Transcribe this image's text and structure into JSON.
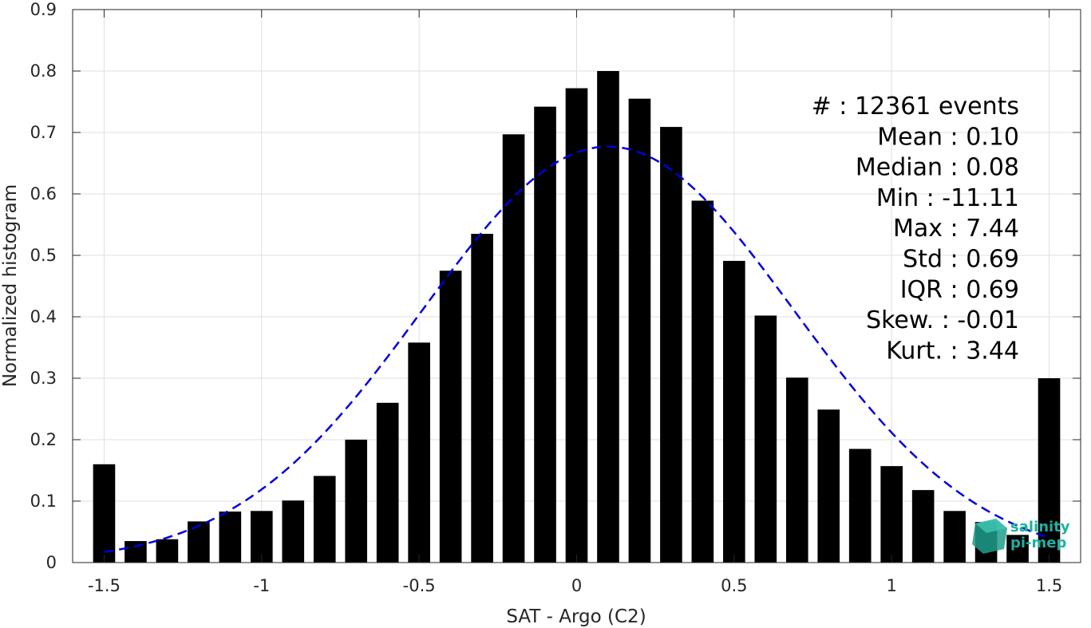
{
  "chart_data": {
    "type": "bar",
    "xlabel": "SAT - Argo (C2)",
    "ylabel": "Normalized histogram",
    "xlim": [
      -1.6,
      1.6
    ],
    "ylim": [
      0,
      0.9
    ],
    "xticks": [
      -1.5,
      -1,
      -0.5,
      0,
      0.5,
      1,
      1.5
    ],
    "xtick_labels": [
      "-1.5",
      "-1",
      "-0.5",
      "0",
      "0.5",
      "1",
      "1.5"
    ],
    "yticks": [
      0,
      0.1,
      0.2,
      0.3,
      0.4,
      0.5,
      0.6,
      0.7,
      0.8,
      0.9
    ],
    "ytick_labels": [
      "0",
      "0.1",
      "0.2",
      "0.3",
      "0.4",
      "0.5",
      "0.6",
      "0.7",
      "0.8",
      "0.9"
    ],
    "grid": true,
    "bar_color": "#000000",
    "x": [
      -1.5,
      -1.4,
      -1.3,
      -1.2,
      -1.1,
      -1.0,
      -0.9,
      -0.8,
      -0.7,
      -0.6,
      -0.5,
      -0.4,
      -0.3,
      -0.2,
      -0.1,
      0.0,
      0.1,
      0.2,
      0.3,
      0.4,
      0.5,
      0.6,
      0.7,
      0.8,
      0.9,
      1.0,
      1.1,
      1.2,
      1.3,
      1.4,
      1.5
    ],
    "values": [
      0.16,
      0.035,
      0.038,
      0.067,
      0.083,
      0.084,
      0.101,
      0.141,
      0.2,
      0.26,
      0.358,
      0.475,
      0.535,
      0.697,
      0.742,
      0.772,
      0.8,
      0.755,
      0.709,
      0.589,
      0.491,
      0.402,
      0.301,
      0.249,
      0.185,
      0.157,
      0.118,
      0.084,
      0.066,
      0.045,
      0.3
    ],
    "fit_curve": {
      "type": "gaussian",
      "mean": 0.1,
      "std": 0.59,
      "peak": 0.677,
      "color": "#0000dd",
      "style": "dashed"
    },
    "annotations": [
      "#  : 12361 events",
      "Mean : 0.10",
      "Median : 0.08",
      "Min : -11.11",
      "Max : 7.44",
      "Std : 0.69",
      "IQR : 0.69",
      "Skew. : -0.01",
      "Kurt. : 3.44"
    ],
    "logo": {
      "line1": "salinity",
      "line2": "pi-mep"
    }
  }
}
